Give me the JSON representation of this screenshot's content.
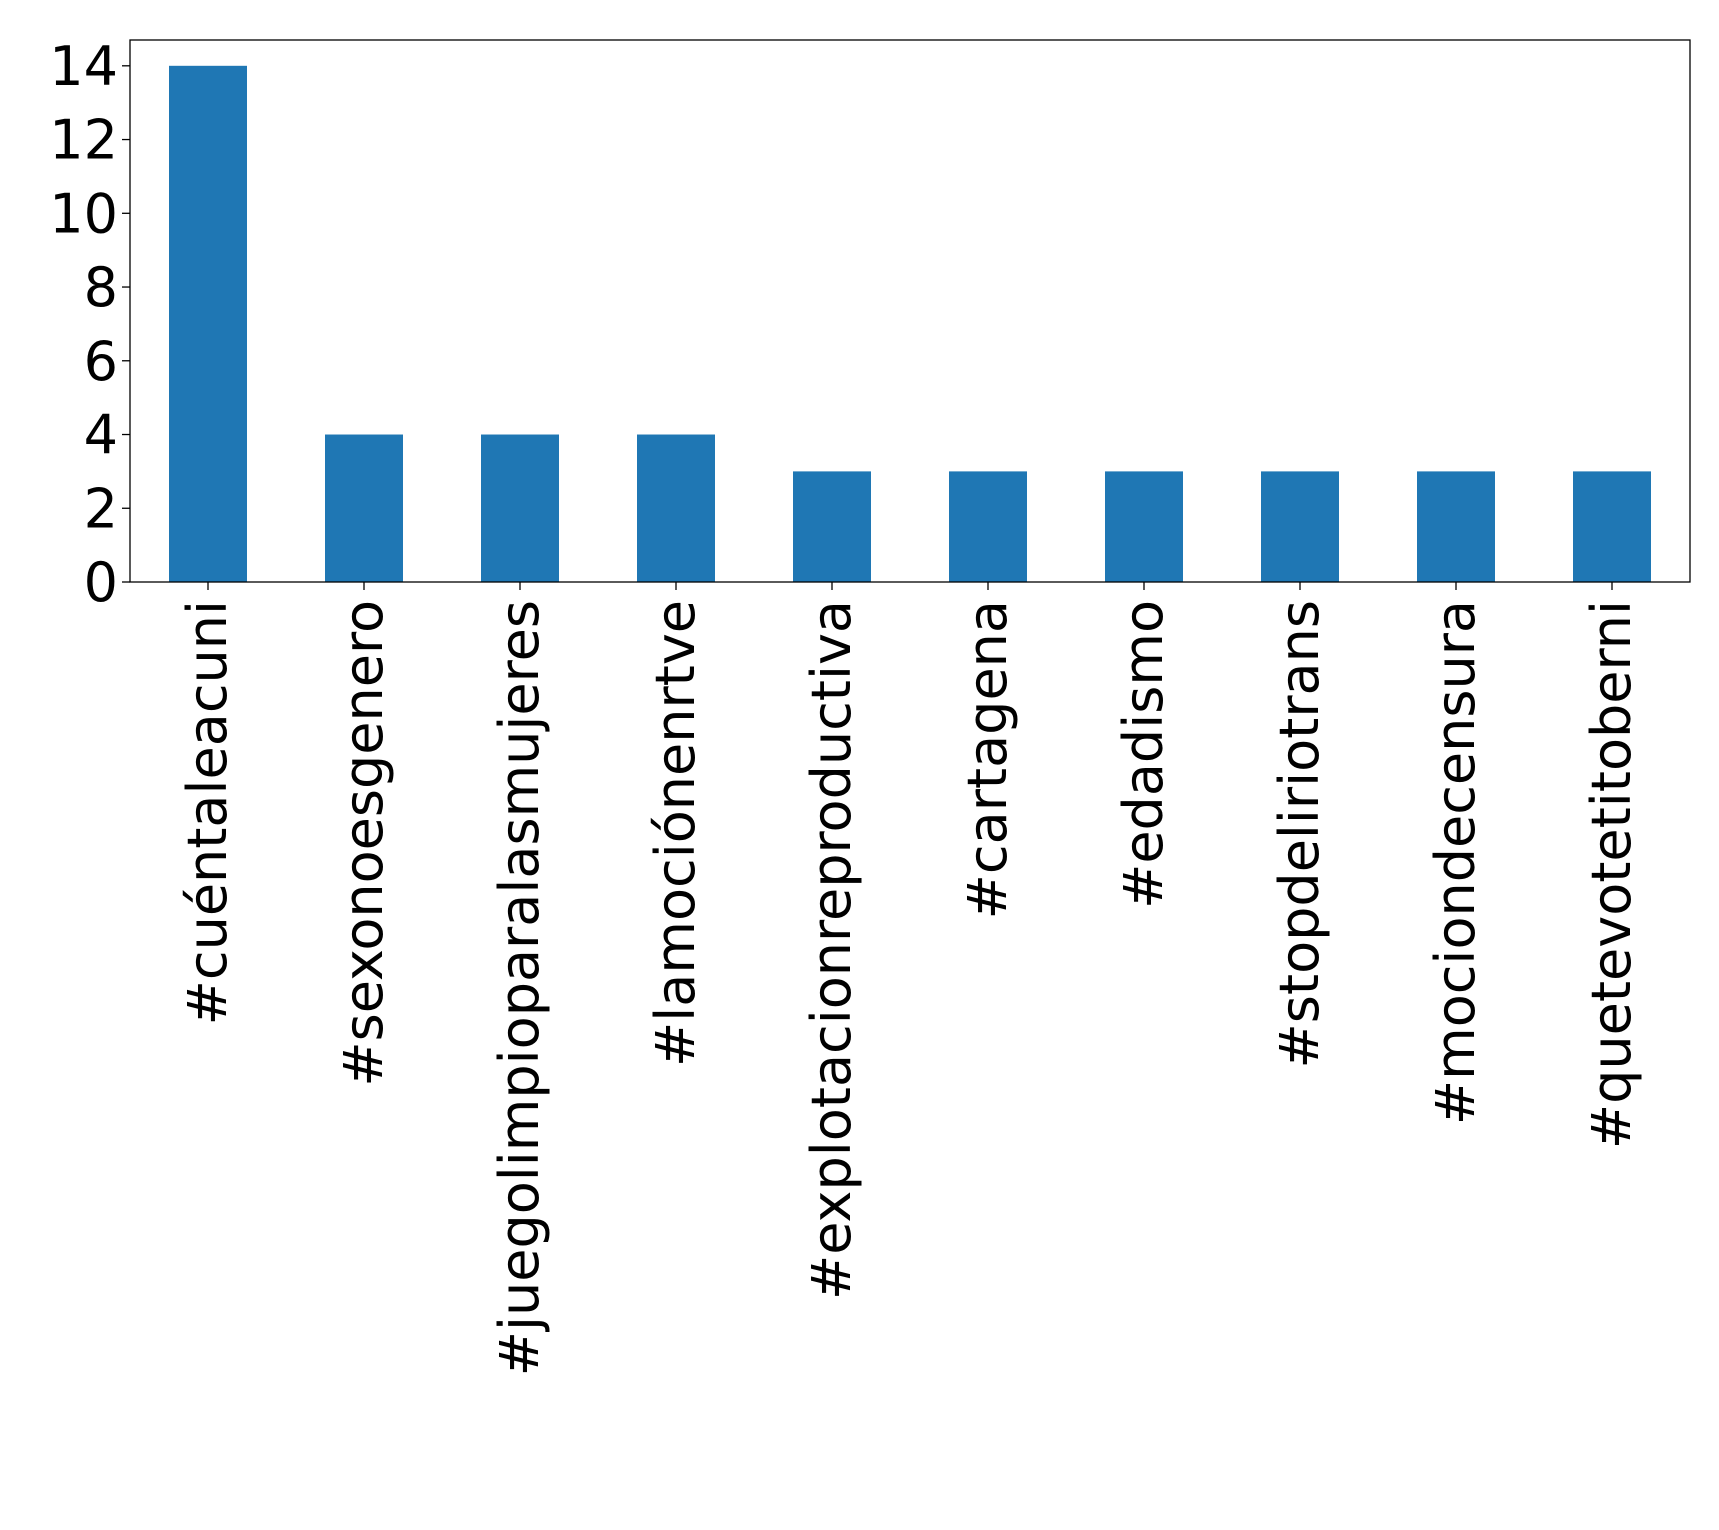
{
  "chart_data": {
    "type": "bar",
    "title": "",
    "xlabel": "",
    "ylabel": "",
    "categories": [
      "#cuéntaleacuni",
      "#sexonoesgenero",
      "#juegolimpioparalasmujeres",
      "#lamociónenrtve",
      "#explotacionreproductiva",
      "#cartagena",
      "#edadismo",
      "#stopdeliriotrans",
      "#mociondecensura",
      "#quetevotetitoberni"
    ],
    "values": [
      14,
      4,
      4,
      4,
      3,
      3,
      3,
      3,
      3,
      3
    ],
    "ylim": [
      0,
      14.7
    ],
    "yticks": [
      0,
      2,
      4,
      6,
      8,
      10,
      12,
      14
    ],
    "bar_color": "#1f77b4",
    "grid": false,
    "legend": false
  }
}
